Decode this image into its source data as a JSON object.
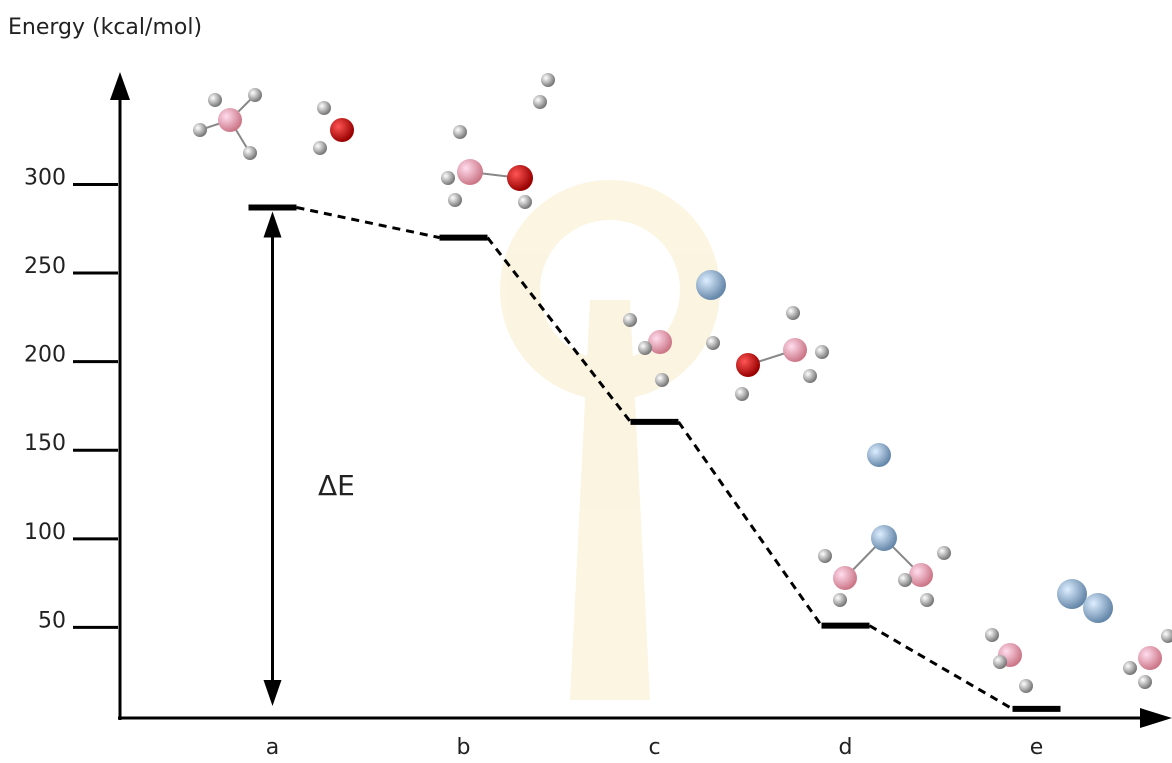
{
  "chart_data": {
    "type": "energy-levels",
    "y_label": "Energy (kcal/mol)",
    "annotation": "ΔE",
    "categories": [
      "a",
      "b",
      "c",
      "d",
      "e"
    ],
    "values": [
      287,
      270,
      166,
      51,
      4
    ],
    "color": "#000000",
    "ylim": [
      0,
      355
    ],
    "yticks": [
      50,
      100,
      150,
      200,
      250,
      300
    ]
  }
}
